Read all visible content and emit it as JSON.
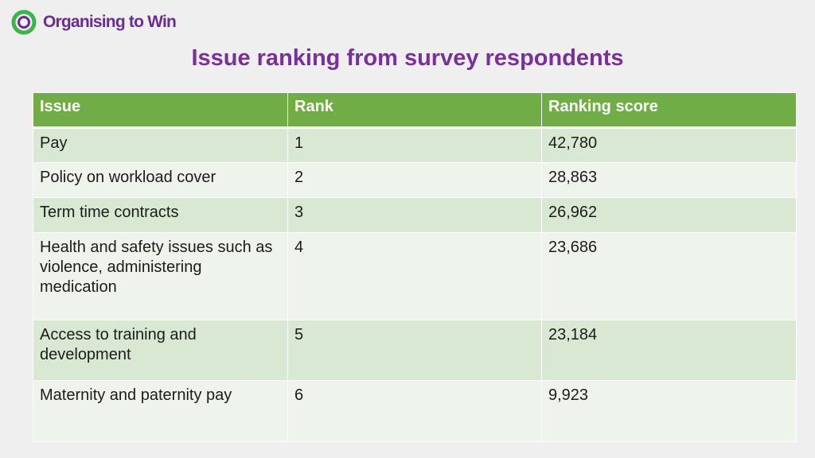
{
  "brand": {
    "name": "Organising to Win",
    "accent": "#6b2c91",
    "ring": "#3bb54a"
  },
  "slide": {
    "title": "Issue ranking from survey respondents"
  },
  "table": {
    "headers": [
      "Issue",
      "Rank",
      "Ranking score"
    ],
    "header_color": "#70ad47",
    "rows": [
      [
        "Pay",
        "1",
        "42,780"
      ],
      [
        "Policy on workload cover",
        "2",
        "28,863"
      ],
      [
        "Term time contracts",
        "3",
        "26,962"
      ],
      [
        "Health and safety issues such as violence, administering medication",
        "4",
        "23,686"
      ],
      [
        "Access to training and development",
        "5",
        "23,184"
      ],
      [
        "Maternity and paternity pay",
        "6",
        "9,923"
      ]
    ]
  }
}
